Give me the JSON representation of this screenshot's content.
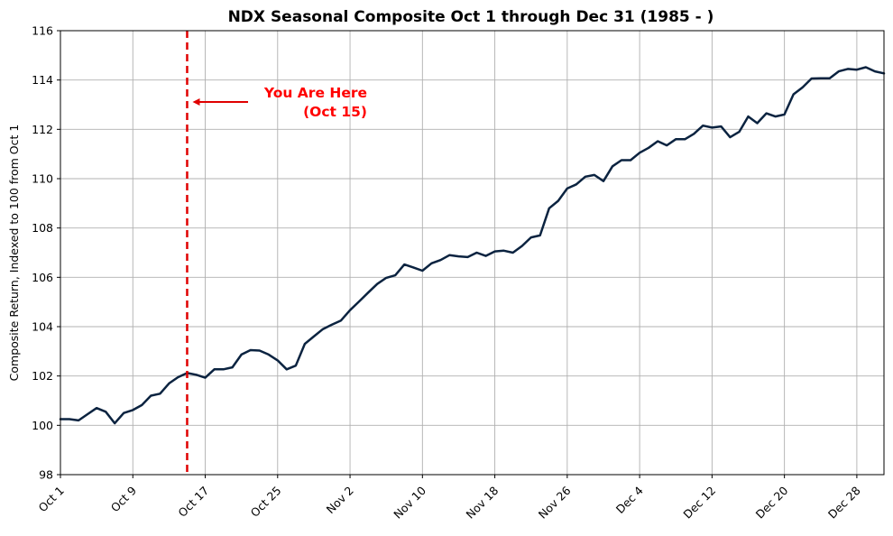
{
  "chart_data": {
    "type": "line",
    "title": "NDX Seasonal Composite Oct 1 through Dec 31 (1985 - )",
    "ylabel": "Composite Return, Indexed to 100 from Oct 1",
    "xlabel": "",
    "ylim": [
      98,
      116
    ],
    "x_range_days": [
      0,
      91
    ],
    "grid": true,
    "line_color": "#0b2340",
    "marker_color": "#e00000",
    "x_ticks": [
      {
        "label": "Oct 1",
        "day": 0
      },
      {
        "label": "Oct 9",
        "day": 8
      },
      {
        "label": "Oct 17",
        "day": 16
      },
      {
        "label": "Oct 25",
        "day": 24
      },
      {
        "label": "Nov 2",
        "day": 32
      },
      {
        "label": "Nov 10",
        "day": 40
      },
      {
        "label": "Nov 18",
        "day": 48
      },
      {
        "label": "Nov 26",
        "day": 56
      },
      {
        "label": "Dec 4",
        "day": 64
      },
      {
        "label": "Dec 12",
        "day": 72
      },
      {
        "label": "Dec 20",
        "day": 80
      },
      {
        "label": "Dec 28",
        "day": 88
      }
    ],
    "y_ticks": [
      "98",
      "100",
      "102",
      "104",
      "106",
      "108",
      "110",
      "112",
      "114",
      "116"
    ],
    "y_tick_values": [
      98,
      100,
      102,
      104,
      106,
      108,
      110,
      112,
      114,
      116
    ],
    "series": [
      {
        "values": [
          [
            0,
            100.25
          ],
          [
            1,
            100.25
          ],
          [
            2,
            100.2
          ],
          [
            3,
            100.45
          ],
          [
            4,
            100.7
          ],
          [
            5,
            100.55
          ],
          [
            6,
            100.08
          ],
          [
            7,
            100.5
          ],
          [
            8,
            100.62
          ],
          [
            9,
            100.82
          ],
          [
            10,
            101.2
          ],
          [
            11,
            101.28
          ],
          [
            12,
            101.7
          ],
          [
            13,
            101.95
          ],
          [
            14,
            102.12
          ],
          [
            15,
            102.05
          ],
          [
            16,
            101.93
          ],
          [
            17,
            102.27
          ],
          [
            18,
            102.27
          ],
          [
            19,
            102.35
          ],
          [
            20,
            102.87
          ],
          [
            21,
            103.05
          ],
          [
            22,
            103.03
          ],
          [
            23,
            102.87
          ],
          [
            24,
            102.63
          ],
          [
            25,
            102.27
          ],
          [
            26,
            102.42
          ],
          [
            27,
            103.3
          ],
          [
            28,
            103.6
          ],
          [
            29,
            103.9
          ],
          [
            30,
            104.08
          ],
          [
            31,
            104.25
          ],
          [
            32,
            104.67
          ],
          [
            33,
            105.02
          ],
          [
            34,
            105.38
          ],
          [
            35,
            105.73
          ],
          [
            36,
            105.98
          ],
          [
            37,
            106.08
          ],
          [
            38,
            106.52
          ],
          [
            39,
            106.4
          ],
          [
            40,
            106.27
          ],
          [
            41,
            106.57
          ],
          [
            42,
            106.7
          ],
          [
            43,
            106.9
          ],
          [
            44,
            106.85
          ],
          [
            45,
            106.82
          ],
          [
            46,
            107.0
          ],
          [
            47,
            106.87
          ],
          [
            48,
            107.05
          ],
          [
            49,
            107.08
          ],
          [
            50,
            107.0
          ],
          [
            51,
            107.27
          ],
          [
            52,
            107.62
          ],
          [
            53,
            107.7
          ],
          [
            54,
            108.8
          ],
          [
            55,
            109.1
          ],
          [
            56,
            109.6
          ],
          [
            57,
            109.77
          ],
          [
            58,
            110.08
          ],
          [
            59,
            110.15
          ],
          [
            60,
            109.9
          ],
          [
            61,
            110.5
          ],
          [
            62,
            110.75
          ],
          [
            63,
            110.75
          ],
          [
            64,
            111.05
          ],
          [
            65,
            111.25
          ],
          [
            66,
            111.52
          ],
          [
            67,
            111.35
          ],
          [
            68,
            111.6
          ],
          [
            69,
            111.6
          ],
          [
            70,
            111.82
          ],
          [
            71,
            112.15
          ],
          [
            72,
            112.07
          ],
          [
            73,
            112.12
          ],
          [
            74,
            111.68
          ],
          [
            75,
            111.9
          ],
          [
            76,
            112.52
          ],
          [
            77,
            112.25
          ],
          [
            78,
            112.65
          ],
          [
            79,
            112.52
          ],
          [
            80,
            112.6
          ],
          [
            81,
            113.42
          ],
          [
            82,
            113.7
          ],
          [
            83,
            114.06
          ],
          [
            84,
            114.07
          ],
          [
            85,
            114.07
          ],
          [
            86,
            114.35
          ],
          [
            87,
            114.45
          ],
          [
            88,
            114.42
          ],
          [
            89,
            114.52
          ],
          [
            90,
            114.35
          ],
          [
            91,
            114.27
          ]
        ]
      }
    ],
    "marker_day": 14,
    "annotation": {
      "line1": "You Are Here",
      "line2": "(Oct 15)"
    }
  }
}
